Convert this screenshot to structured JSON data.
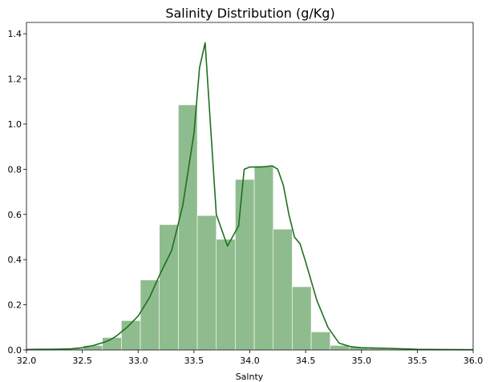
{
  "chart_data": {
    "type": "histogram",
    "title": "Salinity Distribution (g/Kg)",
    "xlabel": "Salnty",
    "ylabel": "",
    "xlim": [
      32.0,
      36.0
    ],
    "ylim": [
      0.0,
      1.45
    ],
    "xticks": [
      "32.0",
      "32.5",
      "33.0",
      "33.5",
      "34.0",
      "34.5",
      "35.0",
      "35.5",
      "36.0"
    ],
    "yticks": [
      "0.0",
      "0.2",
      "0.4",
      "0.6",
      "0.8",
      "1.0",
      "1.2",
      "1.4"
    ],
    "grid": false,
    "legend": "none",
    "bar_color": "#8fbc8f",
    "line_color": "#1f6f1f",
    "bins": [
      {
        "x0": 32.0,
        "x1": 32.17,
        "value": 0.003
      },
      {
        "x0": 32.17,
        "x1": 32.34,
        "value": 0.003
      },
      {
        "x0": 32.34,
        "x1": 32.51,
        "value": 0.006
      },
      {
        "x0": 32.51,
        "x1": 32.68,
        "value": 0.02
      },
      {
        "x0": 32.68,
        "x1": 32.85,
        "value": 0.055
      },
      {
        "x0": 32.85,
        "x1": 33.02,
        "value": 0.13
      },
      {
        "x0": 33.02,
        "x1": 33.19,
        "value": 0.31
      },
      {
        "x0": 33.19,
        "x1": 33.36,
        "value": 0.555
      },
      {
        "x0": 33.36,
        "x1": 33.53,
        "value": 1.085
      },
      {
        "x0": 33.53,
        "x1": 33.7,
        "value": 0.595
      },
      {
        "x0": 33.7,
        "x1": 33.87,
        "value": 0.49
      },
      {
        "x0": 33.87,
        "x1": 34.04,
        "value": 0.755
      },
      {
        "x0": 34.04,
        "x1": 34.21,
        "value": 0.815
      },
      {
        "x0": 34.21,
        "x1": 34.38,
        "value": 0.535
      },
      {
        "x0": 34.38,
        "x1": 34.55,
        "value": 0.28
      },
      {
        "x0": 34.55,
        "x1": 34.72,
        "value": 0.08
      },
      {
        "x0": 34.72,
        "x1": 34.89,
        "value": 0.02
      },
      {
        "x0": 34.89,
        "x1": 35.06,
        "value": 0.012
      },
      {
        "x0": 35.06,
        "x1": 35.23,
        "value": 0.01
      },
      {
        "x0": 35.23,
        "x1": 35.4,
        "value": 0.006
      },
      {
        "x0": 35.4,
        "x1": 35.57,
        "value": 0.004
      },
      {
        "x0": 35.57,
        "x1": 35.74,
        "value": 0.003
      },
      {
        "x0": 35.74,
        "x1": 35.91,
        "value": 0.002
      },
      {
        "x0": 35.91,
        "x1": 36.0,
        "value": 0.002
      }
    ],
    "kde": {
      "x": [
        32.0,
        32.1,
        32.2,
        32.3,
        32.4,
        32.5,
        32.6,
        32.7,
        32.75,
        32.8,
        32.9,
        33.0,
        33.1,
        33.2,
        33.3,
        33.4,
        33.5,
        33.55,
        33.6,
        33.65,
        33.7,
        33.75,
        33.8,
        33.9,
        33.95,
        34.0,
        34.1,
        34.2,
        34.25,
        34.3,
        34.35,
        34.4,
        34.45,
        34.5,
        34.6,
        34.7,
        34.8,
        34.9,
        35.0,
        35.2,
        35.5,
        35.7,
        36.0
      ],
      "y": [
        0.002,
        0.003,
        0.003,
        0.004,
        0.005,
        0.01,
        0.02,
        0.035,
        0.045,
        0.06,
        0.1,
        0.15,
        0.23,
        0.34,
        0.44,
        0.64,
        0.96,
        1.25,
        1.36,
        0.98,
        0.6,
        0.53,
        0.46,
        0.55,
        0.8,
        0.81,
        0.81,
        0.815,
        0.8,
        0.73,
        0.6,
        0.5,
        0.47,
        0.39,
        0.22,
        0.1,
        0.03,
        0.015,
        0.01,
        0.008,
        0.003,
        0.002,
        0.001
      ]
    }
  }
}
